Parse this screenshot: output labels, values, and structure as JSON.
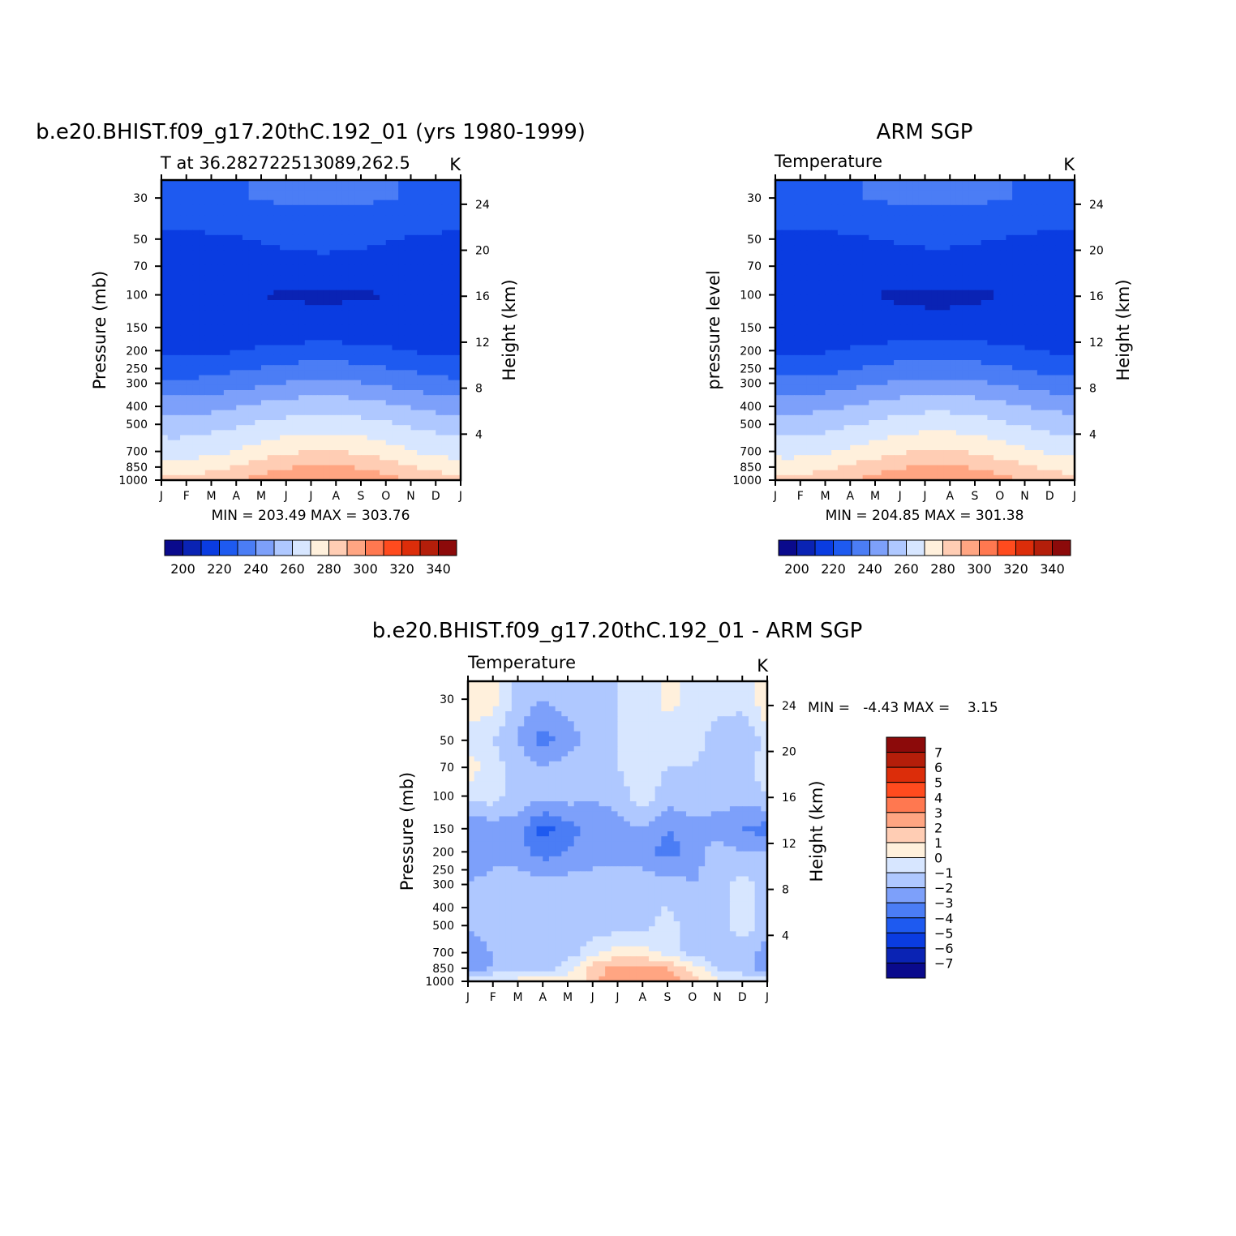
{
  "figure": {
    "panels": [
      {
        "title": "b.e20.BHIST.f09_g17.20thC.192_01 (yrs 1980-1999)",
        "left_label": "T at 36.282722513089,262.5",
        "right_label": "K",
        "ylabel": "Pressure (mb)",
        "ylabel_right": "Height (km)",
        "stats": "MIN = 203.49 MAX = 303.76"
      },
      {
        "title": "ARM SGP",
        "left_label": "Temperature",
        "right_label": "K",
        "ylabel": "pressure level",
        "ylabel_right": "Height (km)",
        "stats": "MIN = 204.85 MAX = 301.38"
      },
      {
        "title": "b.e20.BHIST.f09_g17.20thC.192_01 - ARM SGP",
        "left_label": "Temperature",
        "right_label": "K",
        "ylabel": "Pressure (mb)",
        "ylabel_right": "Height (km)",
        "stats": "MIN =   -4.43 MAX =    3.15"
      }
    ]
  },
  "chart_data": [
    {
      "type": "heatmap",
      "title": "b.e20.BHIST.f09_g17.20thC.192_01 (yrs 1980-1999)",
      "subtitle": "T at 36.282722513089,262.5",
      "units": "K",
      "x": [
        "J",
        "F",
        "M",
        "A",
        "M",
        "J",
        "J",
        "A",
        "S",
        "O",
        "N",
        "D",
        "J"
      ],
      "y_ticks": [
        30,
        50,
        70,
        100,
        150,
        200,
        250,
        300,
        400,
        500,
        700,
        850,
        1000
      ],
      "y_right_ticks": [
        4,
        8,
        12,
        16,
        20,
        24
      ],
      "ylabel": "Pressure (mb)",
      "ylabel_right": "Height (km)",
      "ylim": [
        1000,
        24
      ],
      "min": 203.49,
      "max": 303.76,
      "levels": [
        200,
        210,
        220,
        230,
        240,
        250,
        260,
        270,
        280,
        290,
        300,
        310,
        320,
        330,
        340
      ],
      "colorbar_labels": [
        "200",
        "220",
        "240",
        "260",
        "280",
        "300",
        "320",
        "340"
      ],
      "colors": [
        "#0a0a8c",
        "#0a23b4",
        "#0a3ce1",
        "#1e5af0",
        "#4b7df5",
        "#7da0fa",
        "#afc8ff",
        "#d7e6ff",
        "#fff0dc",
        "#ffcdb4",
        "#ffa582",
        "#ff7850",
        "#ff4b1e",
        "#dc2d0a",
        "#b41e0a",
        "#8c0a0a"
      ],
      "profile_winter": [
        {
          "p": 30,
          "t": 228
        },
        {
          "p": 40,
          "t": 224
        },
        {
          "p": 50,
          "t": 217
        },
        {
          "p": 70,
          "t": 211
        },
        {
          "p": 100,
          "t": 211
        },
        {
          "p": 150,
          "t": 215
        },
        {
          "p": 200,
          "t": 217
        },
        {
          "p": 250,
          "t": 225
        },
        {
          "p": 300,
          "t": 232
        },
        {
          "p": 400,
          "t": 245
        },
        {
          "p": 500,
          "t": 255
        },
        {
          "p": 700,
          "t": 265
        },
        {
          "p": 850,
          "t": 275
        },
        {
          "p": 1000,
          "t": 282
        }
      ],
      "profile_summer": [
        {
          "p": 30,
          "t": 232
        },
        {
          "p": 40,
          "t": 227
        },
        {
          "p": 50,
          "t": 223
        },
        {
          "p": 70,
          "t": 217
        },
        {
          "p": 100,
          "t": 209
        },
        {
          "p": 150,
          "t": 213
        },
        {
          "p": 200,
          "t": 224
        },
        {
          "p": 250,
          "t": 234
        },
        {
          "p": 300,
          "t": 242
        },
        {
          "p": 400,
          "t": 256
        },
        {
          "p": 500,
          "t": 265
        },
        {
          "p": 700,
          "t": 280
        },
        {
          "p": 850,
          "t": 291
        },
        {
          "p": 1000,
          "t": 302
        }
      ]
    },
    {
      "type": "heatmap",
      "title": "ARM SGP",
      "subtitle": "Temperature",
      "units": "K",
      "x": [
        "J",
        "F",
        "M",
        "A",
        "M",
        "J",
        "J",
        "A",
        "S",
        "O",
        "N",
        "D",
        "J"
      ],
      "y_ticks": [
        30,
        50,
        70,
        100,
        150,
        200,
        250,
        300,
        400,
        500,
        700,
        850,
        1000
      ],
      "y_right_ticks": [
        4,
        8,
        12,
        16,
        20,
        24
      ],
      "ylabel": "pressure level",
      "ylabel_right": "Height (km)",
      "ylim": [
        1000,
        24
      ],
      "min": 204.85,
      "max": 301.38,
      "levels": [
        200,
        210,
        220,
        230,
        240,
        250,
        260,
        270,
        280,
        290,
        300,
        310,
        320,
        330,
        340
      ],
      "colorbar_labels": [
        "200",
        "220",
        "240",
        "260",
        "280",
        "300",
        "320",
        "340"
      ],
      "colors": [
        "#0a0a8c",
        "#0a23b4",
        "#0a3ce1",
        "#1e5af0",
        "#4b7df5",
        "#7da0fa",
        "#afc8ff",
        "#d7e6ff",
        "#fff0dc",
        "#ffcdb4",
        "#ffa582",
        "#ff7850",
        "#ff4b1e",
        "#dc2d0a",
        "#b41e0a",
        "#8c0a0a"
      ],
      "profile_winter": [
        {
          "p": 30,
          "t": 228
        },
        {
          "p": 40,
          "t": 224
        },
        {
          "p": 50,
          "t": 216
        },
        {
          "p": 70,
          "t": 211
        },
        {
          "p": 100,
          "t": 213
        },
        {
          "p": 150,
          "t": 216
        },
        {
          "p": 200,
          "t": 218
        },
        {
          "p": 250,
          "t": 226
        },
        {
          "p": 300,
          "t": 233
        },
        {
          "p": 400,
          "t": 246
        },
        {
          "p": 500,
          "t": 255
        },
        {
          "p": 700,
          "t": 266
        },
        {
          "p": 850,
          "t": 276
        },
        {
          "p": 1000,
          "t": 283
        }
      ],
      "profile_summer": [
        {
          "p": 30,
          "t": 232
        },
        {
          "p": 40,
          "t": 226
        },
        {
          "p": 50,
          "t": 222
        },
        {
          "p": 70,
          "t": 216
        },
        {
          "p": 100,
          "t": 208
        },
        {
          "p": 150,
          "t": 213
        },
        {
          "p": 200,
          "t": 225
        },
        {
          "p": 250,
          "t": 235
        },
        {
          "p": 300,
          "t": 243
        },
        {
          "p": 400,
          "t": 257
        },
        {
          "p": 500,
          "t": 266
        },
        {
          "p": 700,
          "t": 281
        },
        {
          "p": 850,
          "t": 291
        },
        {
          "p": 1000,
          "t": 300
        }
      ]
    },
    {
      "type": "heatmap",
      "title": "b.e20.BHIST.f09_g17.20thC.192_01 - ARM SGP",
      "subtitle": "Temperature",
      "units": "K",
      "x": [
        "J",
        "F",
        "M",
        "A",
        "M",
        "J",
        "J",
        "A",
        "S",
        "O",
        "N",
        "D",
        "J"
      ],
      "y_ticks": [
        30,
        50,
        70,
        100,
        150,
        200,
        250,
        300,
        400,
        500,
        700,
        850,
        1000
      ],
      "y_right_ticks": [
        4,
        8,
        12,
        16,
        20,
        24
      ],
      "ylabel": "Pressure (mb)",
      "ylabel_right": "Height (km)",
      "ylim": [
        1000,
        24
      ],
      "min": -4.43,
      "max": 3.15,
      "levels": [
        -7,
        -6,
        -5,
        -4,
        -3,
        -2,
        -1,
        0,
        1,
        2,
        3,
        4,
        5,
        6,
        7
      ],
      "colorbar_labels": [
        "7",
        "6",
        "5",
        "4",
        "3",
        "2",
        "1",
        "0",
        "-1",
        "-2",
        "-3",
        "-4",
        "-5",
        "-6",
        "-7"
      ],
      "colors": [
        "#0a0a8c",
        "#0a23b4",
        "#0a3ce1",
        "#1e5af0",
        "#4b7df5",
        "#7da0fa",
        "#afc8ff",
        "#d7e6ff",
        "#fff0dc",
        "#ffcdb4",
        "#ffa582",
        "#ff7850",
        "#ff4b1e",
        "#dc2d0a",
        "#b41e0a",
        "#8c0a0a"
      ],
      "profile_levels": [
        30,
        50,
        70,
        100,
        150,
        200,
        300,
        500,
        700,
        850,
        1000
      ],
      "difference_grid": [
        [
          0.8,
          0.6,
          -1.5,
          -2.0,
          -1.5,
          -1.2,
          -1.0,
          -1.0,
          0.5,
          -0.5,
          -0.5,
          -0.5,
          0.8
        ],
        [
          -0.5,
          -1.0,
          -2.0,
          -3.5,
          -2.5,
          -1.5,
          -1.0,
          -0.5,
          -1.0,
          -0.5,
          -1.5,
          -2.0,
          -0.5
        ],
        [
          0.5,
          -0.5,
          -1.5,
          -2.0,
          -1.5,
          -1.0,
          -1.0,
          -0.5,
          -1.0,
          -1.0,
          -1.5,
          -1.5,
          -0.5
        ],
        [
          -0.5,
          -0.5,
          -1.5,
          -1.5,
          -1.5,
          -2.0,
          -1.5,
          -0.5,
          -1.5,
          -1.0,
          -1.5,
          -1.5,
          -1.0
        ],
        [
          -3.0,
          -2.5,
          -2.5,
          -4.5,
          -3.5,
          -2.5,
          -2.5,
          -2.0,
          -3.0,
          -2.5,
          -2.5,
          -3.0,
          -3.5
        ],
        [
          -3.0,
          -2.5,
          -2.5,
          -3.5,
          -3.0,
          -2.5,
          -2.5,
          -2.5,
          -3.5,
          -2.5,
          -1.5,
          -2.0,
          -2.0
        ],
        [
          -2.0,
          -1.5,
          -1.5,
          -1.5,
          -1.5,
          -1.5,
          -1.5,
          -1.5,
          -1.5,
          -2.0,
          -1.5,
          -0.5,
          -1.5
        ],
        [
          -2.0,
          -1.5,
          -1.5,
          -1.5,
          -1.5,
          -1.5,
          -1.5,
          -1.5,
          -0.5,
          -1.5,
          -1.5,
          -0.5,
          -1.5
        ],
        [
          -2.5,
          -2.0,
          -1.5,
          -1.5,
          -1.5,
          -0.5,
          0.5,
          0.5,
          -0.5,
          -1.5,
          -2.0,
          -1.5,
          -2.5
        ],
        [
          -2.5,
          -2.0,
          -1.5,
          -1.5,
          -0.5,
          1.5,
          2.5,
          2.5,
          2.0,
          0.8,
          -1.0,
          -1.5,
          -2.5
        ],
        [
          -0.5,
          0.3,
          0.3,
          0.8,
          0.3,
          1.5,
          3.0,
          3.0,
          2.5,
          1.5,
          0.3,
          -0.5,
          -0.5
        ]
      ]
    }
  ]
}
